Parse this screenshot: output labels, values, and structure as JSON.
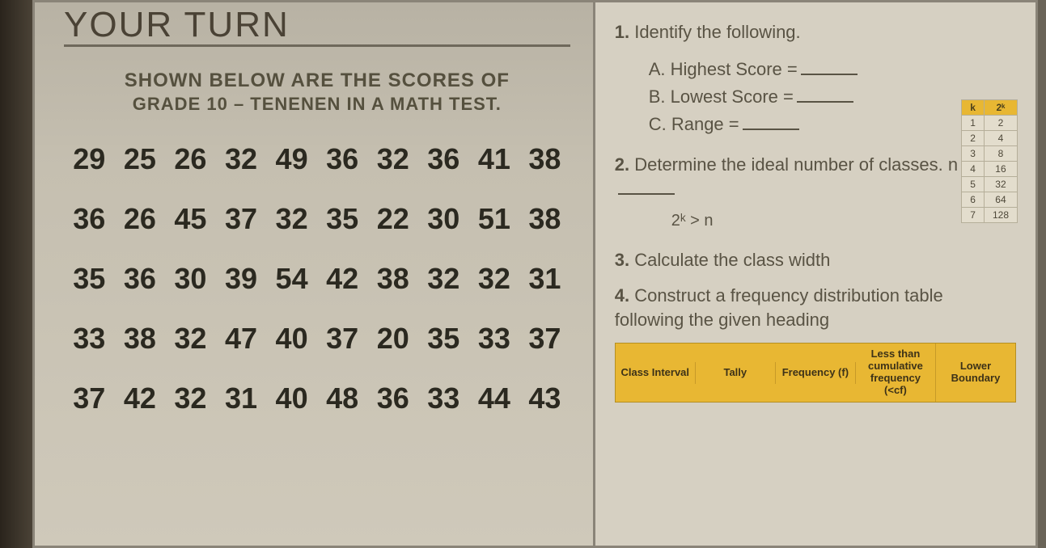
{
  "left": {
    "title_cut": "YOUR TURN",
    "subtitle_line1": "SHOWN BELOW ARE THE SCORES OF",
    "subtitle_line2": "GRADE 10 – TENENEN IN A MATH TEST.",
    "scores": [
      [
        29,
        25,
        26,
        32,
        49,
        36,
        32,
        36,
        41,
        38
      ],
      [
        36,
        26,
        45,
        37,
        32,
        35,
        22,
        30,
        51,
        38
      ],
      [
        35,
        36,
        30,
        39,
        54,
        42,
        38,
        32,
        32,
        31
      ],
      [
        33,
        38,
        32,
        47,
        40,
        37,
        20,
        35,
        33,
        37
      ],
      [
        37,
        42,
        32,
        31,
        40,
        48,
        36,
        33,
        44,
        43
      ]
    ]
  },
  "right": {
    "q1": {
      "num": "1.",
      "text": "Identify the following.",
      "a": "A. Highest Score =",
      "b": "B. Lowest Score =",
      "c": "C. Range ="
    },
    "q2": {
      "num": "2.",
      "text": "Determine the ideal number of classes.    n =",
      "formula": "2ᵏ > n"
    },
    "q3": {
      "num": "3.",
      "text": "Calculate the class width"
    },
    "q4": {
      "num": "4.",
      "text": "Construct a frequency distribution table following the given heading"
    },
    "mini_table": {
      "headers": [
        "k",
        "2ᵏ"
      ],
      "rows": [
        [
          "1",
          "2"
        ],
        [
          "2",
          "4"
        ],
        [
          "3",
          "8"
        ],
        [
          "4",
          "16"
        ],
        [
          "5",
          "32"
        ],
        [
          "6",
          "64"
        ],
        [
          "7",
          "128"
        ]
      ]
    },
    "fdt_headers": [
      "Class Interval",
      "Tally",
      "Frequency (f)",
      "Less than cumulative frequency (<cf)",
      "Lower Boundary"
    ]
  },
  "colors": {
    "page_bg": "#cbc5b8",
    "text_dark": "#2b2920",
    "text_muted": "#595344",
    "accent_yellow": "#e8b733",
    "border": "#8a8478"
  }
}
